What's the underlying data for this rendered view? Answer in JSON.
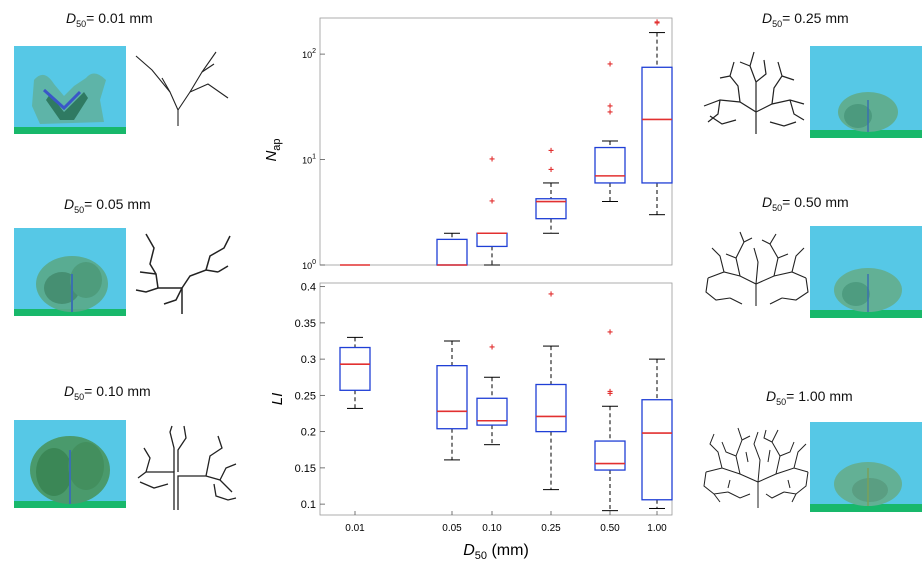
{
  "figure": {
    "samples": [
      {
        "label_var": "D",
        "label_sub": "50",
        "label_eq": "= 0.01 mm"
      },
      {
        "label_var": "D",
        "label_sub": "50",
        "label_eq": "= 0.05 mm"
      },
      {
        "label_var": "D",
        "label_sub": "50",
        "label_eq": "= 0.10 mm"
      },
      {
        "label_var": "D",
        "label_sub": "50",
        "label_eq": "= 0.25 mm"
      },
      {
        "label_var": "D",
        "label_sub": "50",
        "label_eq": "= 0.50 mm"
      },
      {
        "label_var": "D",
        "label_sub": "50",
        "label_eq": "= 1.00 mm"
      }
    ],
    "colors": {
      "box": "#1f3fd6",
      "median": "#e23030",
      "outlier": "#e23030",
      "whisker": "#000000",
      "sky": "#56c8e6",
      "ground": "#18b86b",
      "vegetation": "#4e9c76"
    }
  },
  "chart_data": [
    {
      "type": "box",
      "ylabel_var": "N",
      "ylabel_sub": "ap",
      "yscale": "log",
      "ylim": [
        1,
        220
      ],
      "yticks": [
        {
          "v": 1,
          "b": "10",
          "e": "0"
        },
        {
          "v": 10,
          "b": "10",
          "e": "1"
        },
        {
          "v": 100,
          "b": "10",
          "e": "2"
        }
      ],
      "categories": [
        "0.01",
        "0.05",
        "0.10",
        "0.25",
        "0.50",
        "1.00"
      ],
      "boxes": [
        {
          "min": 1,
          "q1": 1,
          "median": 1,
          "q3": 1,
          "max": 1,
          "outliers": []
        },
        {
          "min": 1,
          "q1": 1,
          "median": 1,
          "q3": 1.75,
          "max": 2,
          "outliers": []
        },
        {
          "min": 1,
          "q1": 1.5,
          "median": 2,
          "q3": 2,
          "max": 2,
          "outliers": [
            4,
            10
          ]
        },
        {
          "min": 2,
          "q1": 2.75,
          "median": 4,
          "q3": 4.25,
          "max": 6,
          "outliers": [
            8,
            12
          ]
        },
        {
          "min": 4,
          "q1": 6,
          "median": 7,
          "q3": 13,
          "max": 15,
          "outliers": [
            28,
            32,
            80
          ]
        },
        {
          "min": 3,
          "q1": 6,
          "median": 24,
          "q3": 75,
          "max": 160,
          "outliers": [
            195,
            200
          ]
        }
      ]
    },
    {
      "type": "box",
      "ylabel": "LI",
      "xlabel_var": "D",
      "xlabel_sub": "50",
      "xlabel_unit": " (mm)",
      "ylim": [
        0.085,
        0.405
      ],
      "yticks": [
        "0.1",
        "0.15",
        "0.2",
        "0.25",
        "0.3",
        "0.35",
        "0.4"
      ],
      "categories": [
        "0.01",
        "0.05",
        "0.10",
        "0.25",
        "0.50",
        "1.00"
      ],
      "boxes": [
        {
          "min": 0.232,
          "q1": 0.257,
          "median": 0.293,
          "q3": 0.316,
          "max": 0.33,
          "outliers": []
        },
        {
          "min": 0.161,
          "q1": 0.204,
          "median": 0.228,
          "q3": 0.291,
          "max": 0.325,
          "outliers": []
        },
        {
          "min": 0.182,
          "q1": 0.209,
          "median": 0.215,
          "q3": 0.246,
          "max": 0.275,
          "outliers": [
            0.316
          ]
        },
        {
          "min": 0.12,
          "q1": 0.2,
          "median": 0.221,
          "q3": 0.265,
          "max": 0.318,
          "outliers": [
            0.389
          ]
        },
        {
          "min": 0.091,
          "q1": 0.147,
          "median": 0.156,
          "q3": 0.187,
          "max": 0.235,
          "outliers": [
            0.252,
            0.255,
            0.337
          ]
        },
        {
          "min": 0.094,
          "q1": 0.106,
          "median": 0.198,
          "q3": 0.244,
          "max": 0.3,
          "outliers": []
        }
      ]
    }
  ]
}
